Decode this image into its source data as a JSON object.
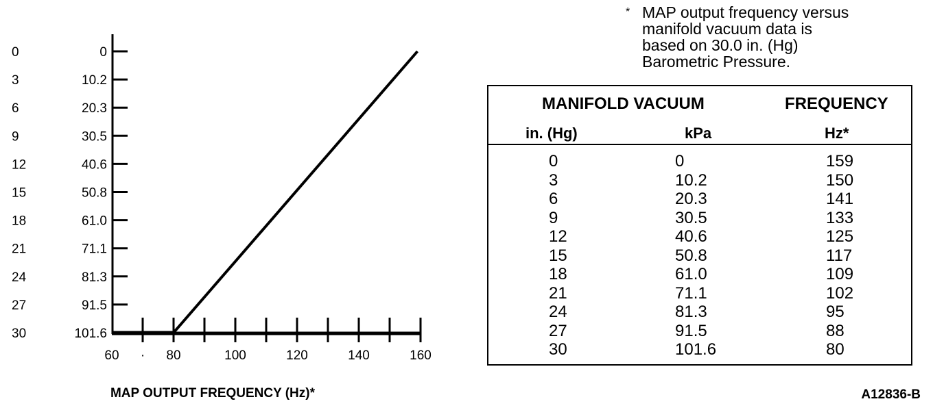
{
  "chart_data": {
    "type": "line",
    "title": "",
    "xlabel": "MAP OUTPUT FREQUENCY (Hz)*",
    "ylabel": "",
    "xlim": [
      60,
      160
    ],
    "x_tick_labels": [
      "60",
      "·",
      "80",
      "100",
      "120",
      "140",
      "160"
    ],
    "y_axis_labels_inhg": [
      "0",
      "3",
      "6",
      "9",
      "12",
      "15",
      "18",
      "21",
      "24",
      "27",
      "30"
    ],
    "y_axis_labels_kpa": [
      "0",
      "10.2",
      "20.3",
      "30.5",
      "40.6",
      "50.8",
      "61.0",
      "71.1",
      "81.3",
      "91.5",
      "101.6"
    ],
    "series": [
      {
        "x": [
          159,
          80
        ],
        "y": [
          0,
          30
        ]
      },
      {
        "x": [
          60,
          80
        ],
        "y": [
          30,
          30
        ]
      }
    ],
    "grid": false,
    "legend": "none"
  },
  "footnote": {
    "marker": "*",
    "lines": [
      "MAP output frequency versus",
      "manifold vacuum data is",
      "based on 30.0 in. (Hg)",
      "Barometric Pressure."
    ]
  },
  "table": {
    "header_vacuum": "MANIFOLD VACUUM",
    "header_frequency": "FREQUENCY",
    "unit_inhg": "in. (Hg)",
    "unit_kpa": "kPa",
    "unit_hz": "Hz*",
    "rows": [
      {
        "inhg": "0",
        "kpa": "0",
        "hz": "159"
      },
      {
        "inhg": "3",
        "kpa": "10.2",
        "hz": "150"
      },
      {
        "inhg": "6",
        "kpa": "20.3",
        "hz": "141"
      },
      {
        "inhg": "9",
        "kpa": "30.5",
        "hz": "133"
      },
      {
        "inhg": "12",
        "kpa": "40.6",
        "hz": "125"
      },
      {
        "inhg": "15",
        "kpa": "50.8",
        "hz": "117"
      },
      {
        "inhg": "18",
        "kpa": "61.0",
        "hz": "109"
      },
      {
        "inhg": "21",
        "kpa": "71.1",
        "hz": "102"
      },
      {
        "inhg": "24",
        "kpa": "81.3",
        "hz": "95"
      },
      {
        "inhg": "27",
        "kpa": "91.5",
        "hz": "88"
      },
      {
        "inhg": "30",
        "kpa": "101.6",
        "hz": "80"
      }
    ]
  },
  "figure_code": "A12836-B"
}
